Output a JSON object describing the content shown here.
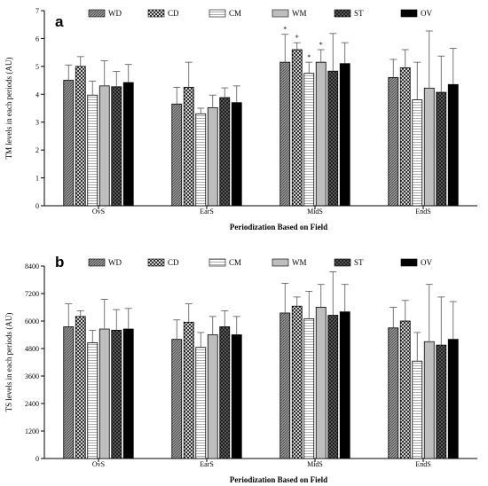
{
  "chart_data": [
    {
      "type": "bar",
      "panel": "a",
      "categories": [
        "OvS",
        "EarS",
        "MidS",
        "EndS"
      ],
      "xlabel": "Periodization Based on Field",
      "ylabel": "TM levels in each periods (AU)",
      "ylim": [
        0,
        7
      ],
      "yticks": [
        0,
        1,
        2,
        3,
        4,
        5,
        6,
        7
      ],
      "ytick_labels": [
        "0",
        "1",
        "2",
        "3",
        "4",
        "5",
        "6",
        "7"
      ],
      "legend_position": "top",
      "series": [
        {
          "name": "WD",
          "pattern": "pat-wd",
          "values": [
            4.5,
            3.65,
            5.15,
            4.6
          ],
          "errors": [
            0.55,
            0.6,
            1.0,
            0.65
          ]
        },
        {
          "name": "CD",
          "pattern": "pat-cd",
          "values": [
            5.0,
            4.25,
            5.6,
            4.95
          ],
          "errors": [
            0.35,
            0.9,
            0.25,
            0.65
          ]
        },
        {
          "name": "CM",
          "pattern": "pat-cm",
          "values": [
            3.97,
            3.3,
            4.75,
            3.8
          ],
          "errors": [
            0.5,
            0.2,
            0.4,
            1.35
          ]
        },
        {
          "name": "WM",
          "pattern": "pat-wm",
          "values": [
            4.3,
            3.52,
            5.15,
            4.22
          ],
          "errors": [
            0.9,
            0.45,
            0.45,
            2.05
          ]
        },
        {
          "name": "ST",
          "pattern": "pat-st",
          "values": [
            4.27,
            3.88,
            4.83,
            4.07
          ],
          "errors": [
            0.55,
            0.35,
            1.35,
            1.3
          ]
        },
        {
          "name": "OV",
          "pattern": "pat-ov",
          "values": [
            4.42,
            3.7,
            5.1,
            4.35
          ],
          "errors": [
            0.65,
            0.6,
            0.75,
            1.3
          ]
        }
      ],
      "annotations": [
        {
          "text": "*",
          "category": "MidS",
          "series": "WD"
        },
        {
          "text": "*",
          "category": "MidS",
          "series": "CD"
        },
        {
          "text": "*",
          "category": "MidS",
          "series": "CM"
        },
        {
          "text": "*",
          "category": "MidS",
          "series": "WM"
        }
      ]
    },
    {
      "type": "bar",
      "panel": "b",
      "categories": [
        "OvS",
        "EarS",
        "MidS",
        "EndS"
      ],
      "xlabel": "Periodization Based on Field",
      "ylabel": "TS levels in each periods (AU)",
      "ylim": [
        0,
        8400
      ],
      "yticks": [
        0,
        1200,
        2400,
        3600,
        4800,
        6000,
        7200,
        8400
      ],
      "ytick_labels": [
        "0",
        "1200",
        "2400",
        "3600",
        "4800",
        "6000",
        "7200",
        "8400"
      ],
      "legend_position": "top",
      "series": [
        {
          "name": "WD",
          "pattern": "pat-wd",
          "values": [
            5750,
            5200,
            6350,
            5700
          ],
          "errors": [
            1000,
            850,
            1300,
            900
          ]
        },
        {
          "name": "CD",
          "pattern": "pat-cd",
          "values": [
            6200,
            5950,
            6650,
            6000
          ],
          "errors": [
            250,
            800,
            400,
            900
          ]
        },
        {
          "name": "CM",
          "pattern": "pat-cm",
          "values": [
            5050,
            4850,
            6100,
            4250
          ],
          "errors": [
            550,
            650,
            1200,
            1250
          ]
        },
        {
          "name": "WM",
          "pattern": "pat-wm",
          "values": [
            5650,
            5400,
            6600,
            5100
          ],
          "errors": [
            1300,
            800,
            1000,
            2500
          ]
        },
        {
          "name": "ST",
          "pattern": "pat-st",
          "values": [
            5600,
            5750,
            6250,
            4950
          ],
          "errors": [
            900,
            700,
            1900,
            2100
          ]
        },
        {
          "name": "OV",
          "pattern": "pat-ov",
          "values": [
            5650,
            5400,
            6400,
            5200
          ],
          "errors": [
            900,
            800,
            1200,
            1650
          ]
        }
      ],
      "annotations": []
    }
  ]
}
